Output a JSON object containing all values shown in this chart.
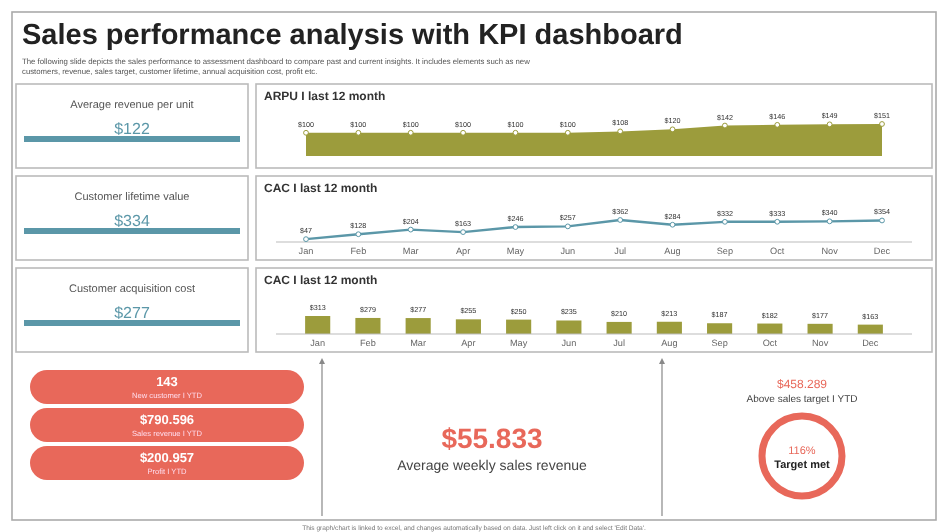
{
  "chart_data": [
    {
      "type": "other",
      "title": "Sales performance analysis with KPI dashboard",
      "subtitle": "The following slide depicts the sales performance to assessment dashboard to compare past and current insights. It includes elements such as new customers, revenue, sales target, customer lifetime, annual acquisition cost, profit etc.",
      "annotations": [
        "Average revenue per unit",
        "$122",
        "Customer lifetime value",
        "$334",
        "Customer acquisition cost",
        "$277",
        "143",
        "New customer I YTD",
        "$790.596",
        "Sales revenue I YTD",
        "$200.957",
        "Profit I YTD",
        "$55.833",
        "Average weekly sales revenue",
        "$458.289",
        "Above sales target I YTD",
        "116%",
        "Target met",
        "This graph/chart is linked to excel, and changes automatically based on data. Just left click on it and select 'Edit Data'."
      ]
    },
    {
      "type": "area",
      "title": "ARPU I last 12 month",
      "categories": [
        null,
        null,
        null,
        null,
        null,
        null,
        null,
        null,
        null,
        null,
        null,
        null
      ],
      "values": [
        100,
        100,
        100,
        100,
        100,
        100,
        108,
        120,
        142,
        146,
        149,
        151
      ],
      "value_labels": [
        "$100",
        "$100",
        "$100",
        "$100",
        "$100",
        "$100",
        "$108",
        "$120",
        "$142",
        "$146",
        "$149",
        "$151"
      ],
      "color": "#9c9c3c",
      "marker": "circle"
    },
    {
      "type": "line",
      "title": "CAC I last 12 month",
      "categories": [
        "Jan",
        "Feb",
        "Mar",
        "Apr",
        "May",
        "Jun",
        "Jul",
        "Aug",
        "Sep",
        "Oct",
        "Nov",
        "Dec"
      ],
      "values": [
        47,
        128,
        204,
        163,
        246,
        257,
        362,
        284,
        332,
        333,
        340,
        354
      ],
      "value_labels": [
        "$47",
        "$128",
        "$204",
        "$163",
        "$246",
        "$257",
        "$362",
        "$284",
        "$332",
        "$333",
        "$340",
        "$354"
      ],
      "color": "#5b97a8",
      "marker": "circle"
    },
    {
      "type": "bar",
      "title": "CAC I last 12 month",
      "categories": [
        "Jan",
        "Feb",
        "Mar",
        "Apr",
        "May",
        "Jun",
        "Jul",
        "Aug",
        "Sep",
        "Oct",
        "Nov",
        "Dec"
      ],
      "values": [
        313,
        279,
        277,
        255,
        250,
        235,
        210,
        213,
        187,
        182,
        177,
        163
      ],
      "value_labels": [
        "$313",
        "$279",
        "$277",
        "$255",
        "$250",
        "$235",
        "$210",
        "$213",
        "$187",
        "$182",
        "$177",
        "$163"
      ],
      "color": "#9c9c3c"
    }
  ]
}
